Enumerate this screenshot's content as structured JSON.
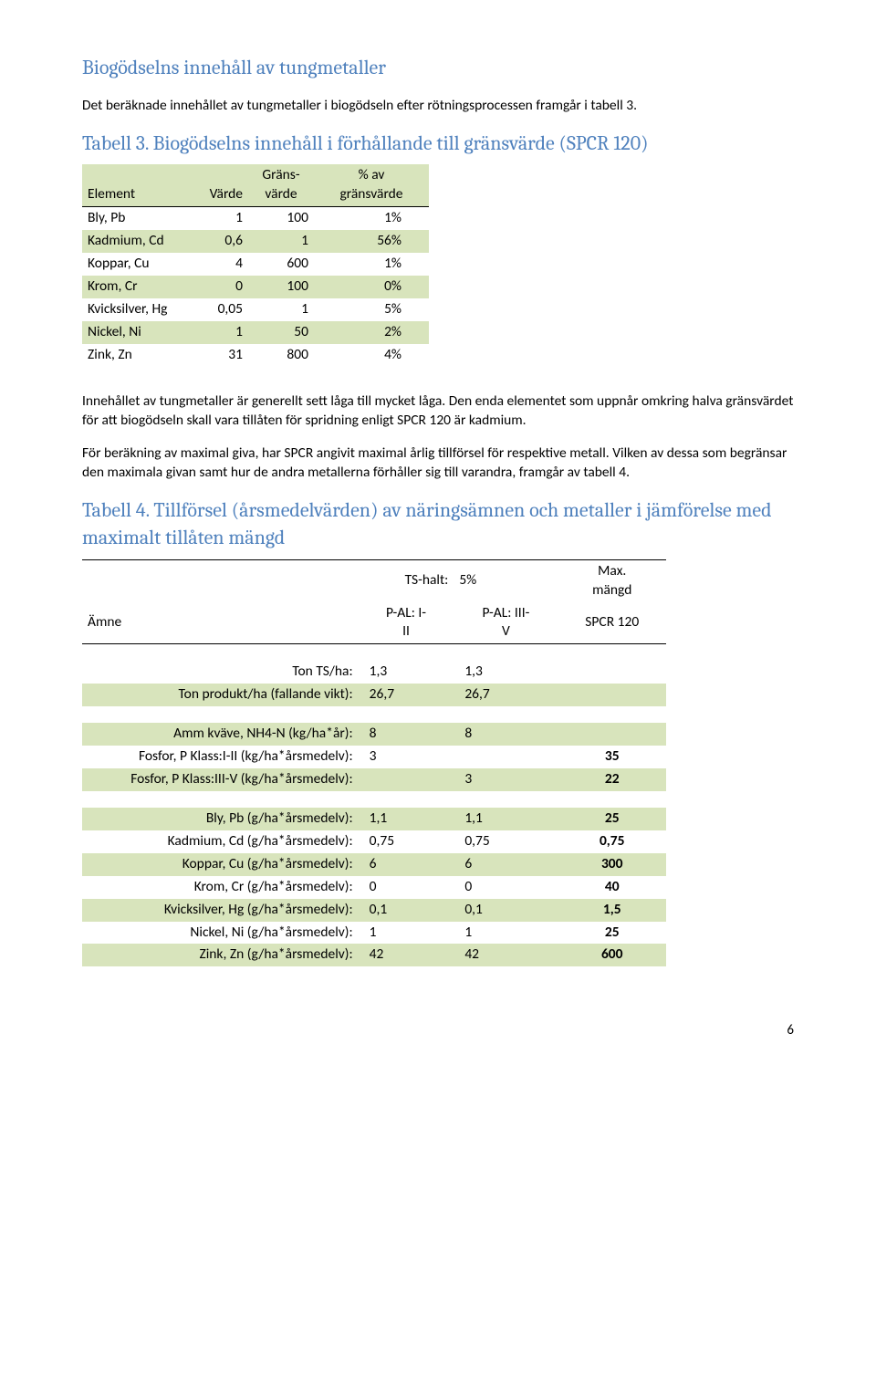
{
  "section1": {
    "heading": "Biogödselns innehåll av tungmetaller",
    "intro": "Det beräknade innehållet av tungmetaller i biogödseln efter rötningsprocessen framgår i tabell 3.",
    "table_caption": "Tabell 3. Biogödselns innehåll i förhållande till gränsvärde (SPCR 120)"
  },
  "table3": {
    "headers": {
      "col1": "Element",
      "col2": "Värde",
      "col3": "Gräns-\nvärde",
      "col4": "% av\ngränsvärde"
    },
    "rows": [
      {
        "label": "Bly, Pb",
        "v": "1",
        "g": "100",
        "p": "1%"
      },
      {
        "label": "Kadmium, Cd",
        "v": "0,6",
        "g": "1",
        "p": "56%"
      },
      {
        "label": "Koppar, Cu",
        "v": "4",
        "g": "600",
        "p": "1%"
      },
      {
        "label": "Krom, Cr",
        "v": "0",
        "g": "100",
        "p": "0%"
      },
      {
        "label": "Kvicksilver, Hg",
        "v": "0,05",
        "g": "1",
        "p": "5%"
      },
      {
        "label": "Nickel, Ni",
        "v": "1",
        "g": "50",
        "p": "2%"
      },
      {
        "label": "Zink, Zn",
        "v": "31",
        "g": "800",
        "p": "4%"
      }
    ]
  },
  "section2": {
    "para1": "Innehållet av tungmetaller är generellt sett låga till mycket låga. Den enda elementet som uppnår omkring halva gränsvärdet för att biogödseln skall vara tillåten för spridning enligt SPCR 120 är kadmium.",
    "para2": "För beräkning av maximal giva, har SPCR angivit maximal årlig tillförsel för respektive metall. Vilken av dessa som begränsar den maximala givan samt hur de andra metallerna förhåller sig till varandra, framgår av tabell 4.",
    "table_caption": "Tabell 4. Tillförsel (årsmedelvärden) av näringsämnen och metaller i jämförelse med maximalt tillåten mängd"
  },
  "table4": {
    "hdr": {
      "amne": "Ämne",
      "ts_label": "TS-halt:",
      "ts_val": "5%",
      "max": "Max.\nmängd",
      "pal12": "P-AL: I-\nII",
      "pal35": "P-AL: III-\nV",
      "spcr": "SPCR 120"
    },
    "block1": [
      {
        "label": "Ton TS/ha:",
        "a": "1,3",
        "b": "1,3",
        "c": ""
      },
      {
        "label": "Ton produkt/ha (fallande vikt):",
        "a": "26,7",
        "b": "26,7",
        "c": ""
      }
    ],
    "block2": [
      {
        "label": "Amm kväve, NH4-N (kg/ha*år):",
        "a": "8",
        "b": "8",
        "c": ""
      },
      {
        "label": "Fosfor, P Klass:I-II (kg/ha*årsmedelv):",
        "a": "3",
        "b": "",
        "c": "35"
      },
      {
        "label": "Fosfor, P Klass:III-V (kg/ha*årsmedelv):",
        "a": "",
        "b": "3",
        "c": "22"
      }
    ],
    "block3": [
      {
        "label": "Bly, Pb (g/ha*årsmedelv):",
        "a": "1,1",
        "b": "1,1",
        "c": "25"
      },
      {
        "label": "Kadmium, Cd (g/ha*årsmedelv):",
        "a": "0,75",
        "b": "0,75",
        "c": "0,75"
      },
      {
        "label": "Koppar, Cu (g/ha*årsmedelv):",
        "a": "6",
        "b": "6",
        "c": "300"
      },
      {
        "label": "Krom, Cr (g/ha*årsmedelv):",
        "a": "0",
        "b": "0",
        "c": "40"
      },
      {
        "label": "Kvicksilver, Hg (g/ha*årsmedelv):",
        "a": "0,1",
        "b": "0,1",
        "c": "1,5"
      },
      {
        "label": "Nickel, Ni (g/ha*årsmedelv):",
        "a": "1",
        "b": "1",
        "c": "25"
      },
      {
        "label": "Zink, Zn (g/ha*årsmedelv):",
        "a": "42",
        "b": "42",
        "c": "600"
      }
    ]
  },
  "colors": {
    "heading": "#4f81bd",
    "row_bg": "#d8e4bc"
  },
  "page_number": "6"
}
